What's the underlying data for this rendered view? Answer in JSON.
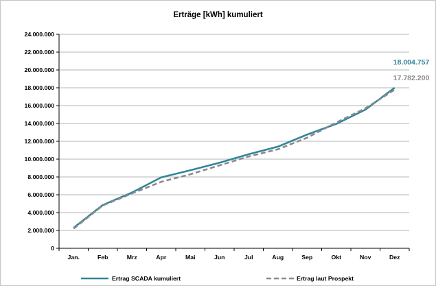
{
  "chart_data": {
    "type": "line",
    "title": "Erträge [kWh] kumuliert",
    "categories": [
      "Jan.",
      "Feb",
      "Mrz",
      "Apr",
      "Mai",
      "Jun",
      "Jul",
      "Aug",
      "Sep",
      "Okt",
      "Nov",
      "Dez"
    ],
    "ylim": [
      0,
      24000000
    ],
    "yticks": [
      0,
      2000000,
      4000000,
      6000000,
      8000000,
      10000000,
      12000000,
      14000000,
      16000000,
      18000000,
      20000000,
      22000000,
      24000000
    ],
    "ytick_labels": [
      "0",
      "2.000.000",
      "4.000.000",
      "6.000.000",
      "8.000.000",
      "10.000.000",
      "12.000.000",
      "14.000.000",
      "16.000.000",
      "18.000.000",
      "20.000.000",
      "22.000.000",
      "24.000.000"
    ],
    "grid": "horizontal",
    "legend": "bottom",
    "series": [
      {
        "name": "Ertrag SCADA kumuliert",
        "color": "#31859c",
        "line_style": "solid",
        "values": [
          2300000,
          4850000,
          6250000,
          7950000,
          8750000,
          9600000,
          10550000,
          11400000,
          12750000,
          13950000,
          15550000,
          18004757
        ],
        "end_label": "18.004.757"
      },
      {
        "name": "Ertrag laut Prospekt",
        "color": "#8a8a8a",
        "line_style": "dashed",
        "values": [
          2200000,
          4800000,
          6150000,
          7450000,
          8300000,
          9300000,
          10300000,
          11100000,
          12400000,
          14100000,
          15700000,
          17782200
        ],
        "end_label": "17.782.200"
      }
    ]
  }
}
